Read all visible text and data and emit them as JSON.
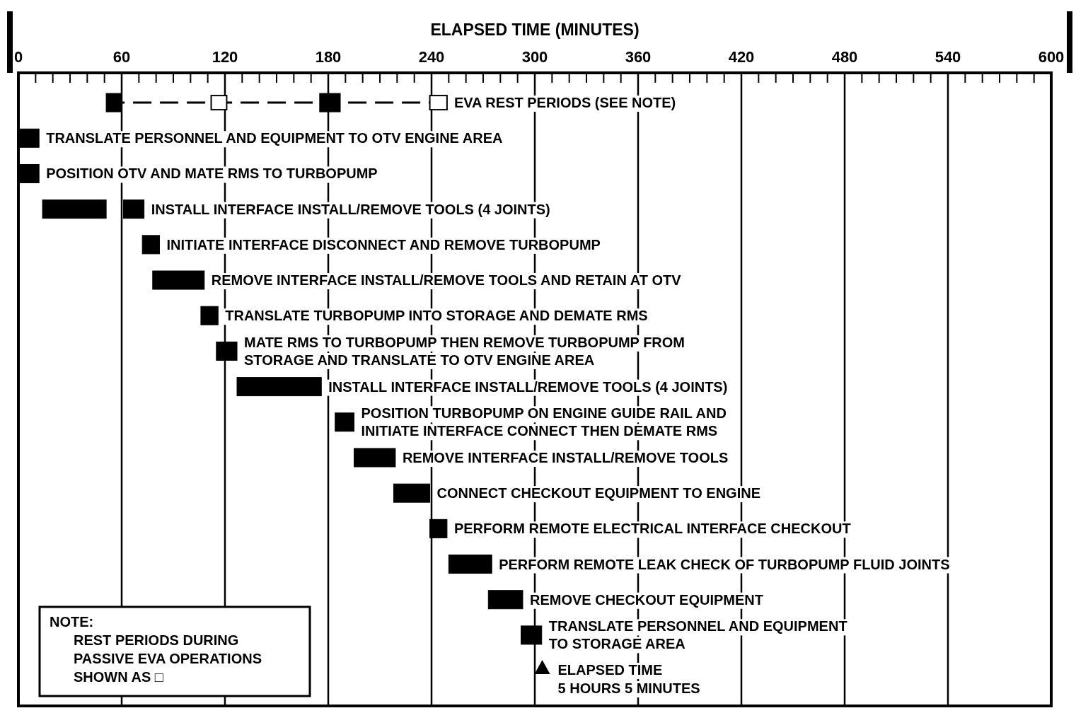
{
  "chart_data": {
    "type": "bar",
    "orientation": "horizontal",
    "xlabel": "ELAPSED TIME  (MINUTES)",
    "categories": [
      "EVA REST PERIODS (SEE NOTE)",
      "TRANSLATE PERSONNEL AND EQUIPMENT TO OTV ENGINE AREA",
      "POSITION OTV AND MATE RMS TO TURBOPUMP",
      "INSTALL INTERFACE INSTALL/REMOVE TOOLS (4 JOINTS)",
      "INITIATE INTERFACE DISCONNECT AND REMOVE TURBOPUMP",
      "REMOVE INTERFACE INSTALL/REMOVE TOOLS AND RETAIN AT OTV",
      "TRANSLATE TURBOPUMP INTO STORAGE AND DEMATE RMS",
      "MATE RMS TO TURBOPUMP THEN REMOVE TURBOPUMP FROM\nSTORAGE AND TRANSLATE TO OTV ENGINE AREA",
      "INSTALL INTERFACE INSTALL/REMOVE TOOLS (4 JOINTS)",
      "POSITION TURBOPUMP ON ENGINE GUIDE RAIL AND\nINITIATE INTERFACE CONNECT THEN DEMATE RMS",
      "REMOVE INTERFACE INSTALL/REMOVE TOOLS",
      "CONNECT CHECKOUT EQUIPMENT TO ENGINE",
      "PERFORM REMOTE ELECTRICAL  INTERFACE  CHECKOUT",
      "PERFORM REMOTE LEAK CHECK OF TURBOPUMP FLUID JOINTS",
      "REMOVE CHECKOUT EQUIPMENT",
      "TRANSLATE PERSONNEL AND EQUIPMENT\nTO STORAGE AREA"
    ],
    "series": [
      {
        "color": "#000000",
        "base": [
          51,
          0,
          0,
          14,
          72,
          78,
          106,
          115,
          127,
          184,
          195,
          218,
          239,
          250,
          273,
          292
        ],
        "values": [
          9,
          12,
          12,
          37,
          10,
          30,
          10,
          12,
          49,
          11,
          24,
          21,
          10,
          25,
          20,
          12
        ]
      },
      {
        "color": "#000000",
        "base": [
          175,
          null,
          null,
          61,
          null,
          null,
          null,
          null,
          null,
          null,
          null,
          null,
          null,
          null,
          null,
          null
        ],
        "values": [
          12,
          null,
          null,
          12,
          null,
          null,
          null,
          null,
          null,
          null,
          null,
          null,
          null,
          null,
          null,
          null
        ]
      },
      {
        "color": "#ffffff",
        "base": [
          112,
          null,
          null,
          null,
          null,
          null,
          null,
          null,
          null,
          null,
          null,
          null,
          null,
          null,
          null,
          null
        ],
        "values": [
          9,
          null,
          null,
          null,
          null,
          null,
          null,
          null,
          null,
          null,
          null,
          null,
          null,
          null,
          null,
          null
        ]
      },
      {
        "color": "#ffffff",
        "base": [
          239,
          null,
          null,
          null,
          null,
          null,
          null,
          null,
          null,
          null,
          null,
          null,
          null,
          null,
          null,
          null
        ],
        "values": [
          10,
          null,
          null,
          null,
          null,
          null,
          null,
          null,
          null,
          null,
          null,
          null,
          null,
          null,
          null,
          null
        ]
      }
    ],
    "xlim": [
      0,
      600
    ],
    "xticks": [
      0,
      {
        "value": 10,
        "label": null
      },
      {
        "value": 20,
        "label": null
      },
      {
        "value": 30,
        "label": null
      },
      {
        "value": 40,
        "label": null
      },
      {
        "value": 50,
        "label": null
      },
      60,
      {
        "value": 70,
        "label": null
      },
      {
        "value": 80,
        "label": null
      },
      {
        "value": 90,
        "label": null
      },
      {
        "value": 100,
        "label": null
      },
      {
        "value": 110,
        "label": null
      },
      120,
      {
        "value": 130,
        "label": null
      },
      {
        "value": 140,
        "label": null
      },
      {
        "value": 150,
        "label": null
      },
      {
        "value": 160,
        "label": null
      },
      {
        "value": 170,
        "label": null
      },
      180,
      {
        "value": 190,
        "label": null
      },
      {
        "value": 200,
        "label": null
      },
      {
        "value": 210,
        "label": null
      },
      {
        "value": 220,
        "label": null
      },
      {
        "value": 230,
        "label": null
      },
      240,
      {
        "value": 250,
        "label": null
      },
      {
        "value": 260,
        "label": null
      },
      {
        "value": 270,
        "label": null
      },
      {
        "value": 280,
        "label": null
      },
      {
        "value": 290,
        "label": null
      },
      300,
      {
        "value": 310,
        "label": null
      },
      {
        "value": 320,
        "label": null
      },
      {
        "value": 330,
        "label": null
      },
      {
        "value": 340,
        "label": null
      },
      {
        "value": 350,
        "label": null
      },
      360,
      {
        "value": 370,
        "label": null
      },
      {
        "value": 380,
        "label": null
      },
      {
        "value": 390,
        "label": null
      },
      {
        "value": 400,
        "label": null
      },
      {
        "value": 410,
        "label": null
      },
      420,
      {
        "value": 430,
        "label": null
      },
      {
        "value": 440,
        "label": null
      },
      {
        "value": 450,
        "label": null
      },
      {
        "value": 460,
        "label": null
      },
      {
        "value": 470,
        "label": null
      },
      480,
      {
        "value": 490,
        "label": null
      },
      {
        "value": 500,
        "label": null
      },
      {
        "value": 510,
        "label": null
      },
      {
        "value": 520,
        "label": null
      },
      {
        "value": 530,
        "label": null
      },
      540,
      {
        "value": 550,
        "label": null
      },
      {
        "value": 560,
        "label": null
      },
      {
        "value": 570,
        "label": null
      },
      {
        "value": 580,
        "label": null
      },
      {
        "value": 590,
        "label": null
      },
      600
    ],
    "grid": "x",
    "annotations": [
      "ELAPSED TIME\n5 HOURS 5 MINUTES",
      "NOTE:\nREST PERIODS DURING\nPASSIVE EVA OPERATIONS\nSHOWN AS □"
    ]
  }
}
